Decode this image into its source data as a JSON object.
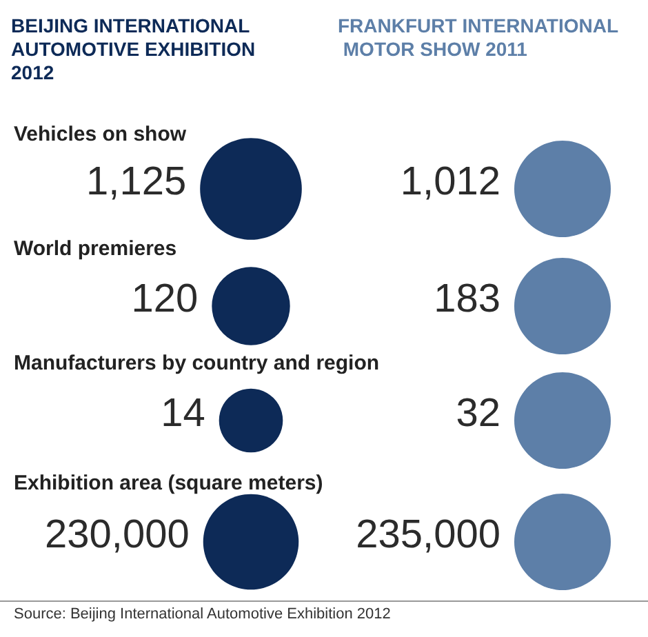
{
  "chart_data": {
    "type": "other",
    "categories": [
      "Vehicles on show",
      "World premieres",
      "Manufacturers by country and region",
      "Exhibition area (square meters)"
    ],
    "series": [
      {
        "name": "BEIJING INTERNATIONAL AUTOMOTIVE EXHIBITION 2012",
        "color": "#0d2a57",
        "values": [
          1125,
          120,
          14,
          230000
        ],
        "value_labels": [
          "1,125",
          "120",
          "14",
          "230,000"
        ]
      },
      {
        "name": "FRANKFURT INTERNATIONAL MOTOR SHOW 2011",
        "color": "#5d7fa8",
        "values": [
          1012,
          183,
          32,
          235000
        ],
        "value_labels": [
          "1,012",
          "183",
          "32",
          "235,000"
        ]
      }
    ],
    "annotations": [
      "Source: Beijing International Automotive Exhibition 2012"
    ]
  }
}
